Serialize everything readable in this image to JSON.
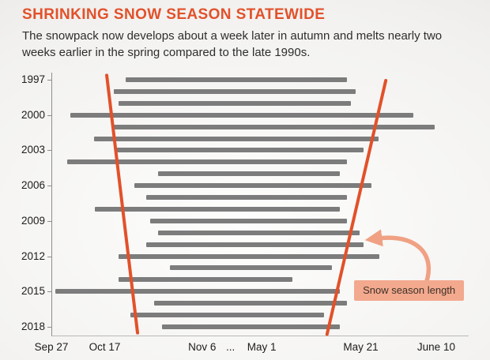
{
  "header": {
    "title": "SHRINKING SNOW SEASON STATEWIDE",
    "subtitle": "The snowpack now develops about a week later in autumn and melts nearly two weeks earlier in the spring compared to the late 1990s."
  },
  "chart_data": {
    "type": "bar",
    "variant": "horizontal-range-bars-by-year",
    "title": "SHRINKING SNOW SEASON STATEWIDE",
    "x_axis": {
      "note": "broken time axis: autumn dates then spring dates",
      "ticks": [
        {
          "label": "Sep 27",
          "pct": 0
        },
        {
          "label": "Oct 17",
          "pct": 12.8
        },
        {
          "label": "Nov 6",
          "pct": 36.2
        },
        {
          "label": "...",
          "pct": 43.0
        },
        {
          "label": "May 1",
          "pct": 50.5
        },
        {
          "label": "May 21",
          "pct": 74.3
        },
        {
          "label": "June 10",
          "pct": 92.4
        }
      ]
    },
    "y_axis": {
      "rows": 22,
      "first_year": 1997,
      "last_year": 2018,
      "ticks": [
        {
          "label": "1997",
          "row": 0
        },
        {
          "label": "2000",
          "row": 3
        },
        {
          "label": "2003",
          "row": 6
        },
        {
          "label": "2006",
          "row": 9
        },
        {
          "label": "2009",
          "row": 12
        },
        {
          "label": "2012",
          "row": 15
        },
        {
          "label": "2015",
          "row": 18
        },
        {
          "label": "2018",
          "row": 21
        }
      ]
    },
    "bars": [
      {
        "year": 1997,
        "start_pct": 17.6,
        "end_pct": 70.8
      },
      {
        "year": 1998,
        "start_pct": 14.8,
        "end_pct": 72.9
      },
      {
        "year": 1999,
        "start_pct": 15.9,
        "end_pct": 71.7
      },
      {
        "year": 2000,
        "start_pct": 4.4,
        "end_pct": 86.7
      },
      {
        "year": 2001,
        "start_pct": 14.8,
        "end_pct": 91.8
      },
      {
        "year": 2002,
        "start_pct": 10.1,
        "end_pct": 78.4
      },
      {
        "year": 2003,
        "start_pct": 15.0,
        "end_pct": 74.8
      },
      {
        "year": 2004,
        "start_pct": 3.6,
        "end_pct": 70.8
      },
      {
        "year": 2005,
        "start_pct": 25.4,
        "end_pct": 69.1
      },
      {
        "year": 2006,
        "start_pct": 19.7,
        "end_pct": 76.7
      },
      {
        "year": 2007,
        "start_pct": 22.6,
        "end_pct": 70.8
      },
      {
        "year": 2008,
        "start_pct": 10.2,
        "end_pct": 69.1
      },
      {
        "year": 2009,
        "start_pct": 23.5,
        "end_pct": 70.8
      },
      {
        "year": 2010,
        "start_pct": 25.4,
        "end_pct": 73.8
      },
      {
        "year": 2011,
        "start_pct": 22.6,
        "end_pct": 74.8
      },
      {
        "year": 2012,
        "start_pct": 15.9,
        "end_pct": 78.6
      },
      {
        "year": 2013,
        "start_pct": 28.3,
        "end_pct": 67.2
      },
      {
        "year": 2014,
        "start_pct": 15.9,
        "end_pct": 57.7
      },
      {
        "year": 2015,
        "start_pct": 0.8,
        "end_pct": 69.1
      },
      {
        "year": 2016,
        "start_pct": 24.5,
        "end_pct": 70.8
      },
      {
        "year": 2017,
        "start_pct": 18.8,
        "end_pct": 65.3
      },
      {
        "year": 2018,
        "start_pct": 26.4,
        "end_pct": 69.1
      }
    ],
    "trend_lines": [
      {
        "name": "autumn-onset-trend-line",
        "x1_pct": 13.1,
        "y1_pct": 1.0,
        "x2_pct": 20.5,
        "y2_pct": 99.0
      },
      {
        "name": "spring-melt-trend-line",
        "x1_pct": 80.1,
        "y1_pct": 3.0,
        "x2_pct": 66.0,
        "y2_pct": 99.5
      }
    ],
    "annotation": {
      "label": "Snow season length"
    },
    "colors": {
      "title": "#e2512a",
      "bar": "#7c7c7c",
      "trend": "#e2512a",
      "annotation_bg": "#f3a98e",
      "axis_text": "#1d1c1b"
    }
  }
}
